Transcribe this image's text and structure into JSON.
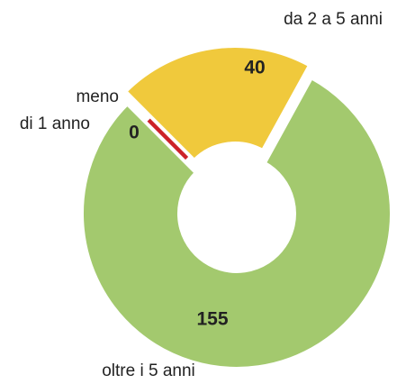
{
  "chart_data": {
    "type": "donut",
    "categories": [
      [
        "meno",
        "di 1 anno"
      ],
      [
        "da 2 a 5 anni"
      ],
      [
        "oltre i 5 anni"
      ]
    ],
    "values": [
      0,
      40,
      155
    ],
    "colors": [
      "#cc2229",
      "#f0c93c",
      "#a3c96e"
    ]
  }
}
